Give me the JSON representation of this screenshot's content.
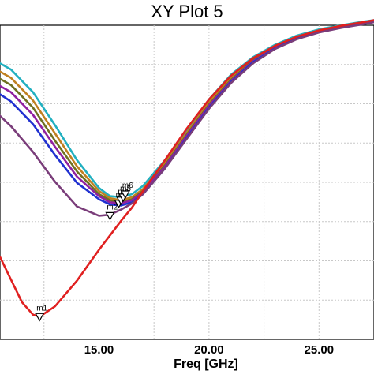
{
  "chart_data": {
    "type": "line",
    "title": "XY Plot 5",
    "xlabel": "Freq [GHz]",
    "ylabel": "",
    "xlim": [
      10.5,
      27.5
    ],
    "x_ticks": [
      {
        "value": 15,
        "label": "15.00"
      },
      {
        "value": 20,
        "label": "20.00"
      },
      {
        "value": 25,
        "label": "25.00"
      }
    ],
    "x_grid": [
      12.5,
      15,
      17.5,
      20,
      22.5,
      25
    ],
    "y_gridlines": 7,
    "grid": true,
    "series": [
      {
        "color": "#22b0c0",
        "x": [
          10.5,
          11,
          12,
          13,
          14,
          15,
          15.5,
          16,
          16.5,
          17,
          18,
          19,
          20,
          21,
          22,
          23,
          24,
          25,
          26,
          27,
          27.5
        ],
        "y": [
          -4.2,
          -4.8,
          -7.0,
          -10.2,
          -13.6,
          -16.3,
          -17.1,
          -17.2,
          -16.9,
          -16.1,
          -13.6,
          -10.6,
          -7.7,
          -5.3,
          -3.6,
          -2.4,
          -1.5,
          -0.9,
          -0.5,
          -0.15,
          0.0
        ]
      },
      {
        "color": "#c08020",
        "x": [
          10.5,
          11,
          12,
          13,
          14,
          15,
          15.5,
          16,
          16.5,
          17,
          18,
          19,
          20,
          21,
          22,
          23,
          24,
          25,
          26,
          27,
          27.5
        ],
        "y": [
          -5.0,
          -5.6,
          -7.8,
          -11.0,
          -14.2,
          -16.6,
          -17.3,
          -17.5,
          -17.2,
          -16.4,
          -13.9,
          -10.9,
          -8.0,
          -5.6,
          -3.8,
          -2.5,
          -1.6,
          -1.0,
          -0.55,
          -0.2,
          -0.05
        ]
      },
      {
        "color": "#707020",
        "x": [
          10.5,
          11,
          12,
          13,
          14,
          15,
          15.5,
          16,
          16.5,
          17,
          18,
          19,
          20,
          21,
          22,
          23,
          24,
          25,
          26,
          27,
          27.5
        ],
        "y": [
          -5.7,
          -6.3,
          -8.5,
          -11.7,
          -14.7,
          -16.9,
          -17.5,
          -17.7,
          -17.4,
          -16.6,
          -14.1,
          -11.1,
          -8.2,
          -5.8,
          -3.9,
          -2.6,
          -1.7,
          -1.05,
          -0.6,
          -0.25,
          -0.1
        ]
      },
      {
        "color": "#9020a0",
        "x": [
          10.5,
          11,
          12,
          13,
          14,
          15,
          15.5,
          16,
          16.5,
          17,
          18,
          19,
          20,
          21,
          22,
          23,
          24,
          25,
          26,
          27,
          27.5
        ],
        "y": [
          -6.4,
          -7.0,
          -9.2,
          -12.3,
          -15.2,
          -17.1,
          -17.7,
          -17.8,
          -17.5,
          -16.7,
          -14.2,
          -11.2,
          -8.3,
          -5.9,
          -4.0,
          -2.7,
          -1.75,
          -1.1,
          -0.65,
          -0.3,
          -0.12
        ]
      },
      {
        "color": "#2030d0",
        "x": [
          10.5,
          11,
          12,
          13,
          14,
          15,
          15.5,
          16,
          16.5,
          17,
          18,
          19,
          20,
          21,
          22,
          23,
          24,
          25,
          26,
          27,
          27.5
        ],
        "y": [
          -7.2,
          -7.9,
          -10.1,
          -13.1,
          -15.8,
          -17.4,
          -17.9,
          -18.0,
          -17.7,
          -16.9,
          -14.4,
          -11.4,
          -8.5,
          -6.0,
          -4.1,
          -2.75,
          -1.8,
          -1.15,
          -0.7,
          -0.35,
          -0.15
        ]
      },
      {
        "color": "#7a3d7a",
        "x": [
          10.5,
          11,
          12,
          13,
          14,
          15,
          15.5,
          16,
          16.5,
          17,
          18,
          19,
          20,
          21,
          22,
          23,
          24,
          25,
          26,
          27,
          27.5
        ],
        "y": [
          -9.3,
          -10.3,
          -12.8,
          -15.7,
          -18.1,
          -19.0,
          -18.9,
          -18.4,
          -17.8,
          -16.9,
          -14.4,
          -11.5,
          -8.6,
          -6.1,
          -4.2,
          -2.8,
          -1.85,
          -1.2,
          -0.75,
          -0.4,
          -0.2
        ]
      },
      {
        "color": "#e02020",
        "x": [
          10.5,
          11,
          11.5,
          12,
          12.3,
          13,
          14,
          15,
          16,
          16.5,
          17,
          18,
          19,
          20,
          21,
          22,
          23,
          24,
          25,
          26,
          27,
          27.5
        ],
        "y": [
          -23.0,
          -25.2,
          -27.4,
          -28.6,
          -28.8,
          -27.8,
          -25.3,
          -22.3,
          -19.5,
          -18.2,
          -16.6,
          -13.6,
          -10.5,
          -7.7,
          -5.4,
          -3.7,
          -2.5,
          -1.6,
          -1.0,
          -0.55,
          -0.2,
          0.0
        ]
      }
    ],
    "markers": [
      {
        "name": "m1",
        "x": 12.3,
        "y": -28.8
      },
      {
        "name": "m2",
        "x": 15.5,
        "y": -19.0
      },
      {
        "name": "m3",
        "x": 15.9,
        "y": -17.8
      },
      {
        "name": "m4",
        "x": 16.0,
        "y": -17.5
      },
      {
        "name": "m5",
        "x": 16.1,
        "y": -17.2
      },
      {
        "name": "m6",
        "x": 16.2,
        "y": -16.9
      }
    ]
  }
}
